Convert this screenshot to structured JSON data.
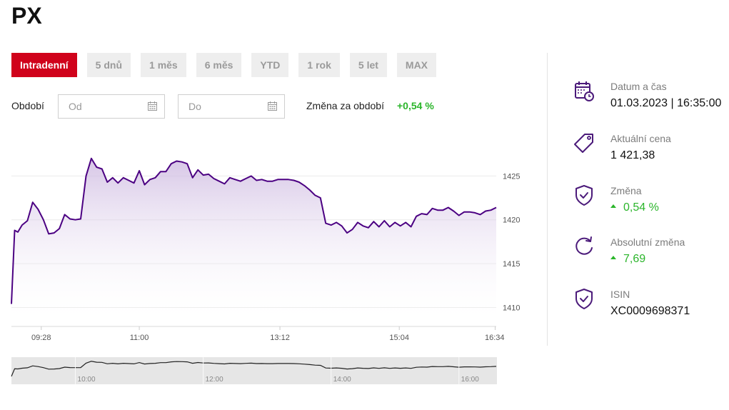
{
  "title": "PX",
  "tabs": [
    "Intradenní",
    "5 dnů",
    "1 měs",
    "6 měs",
    "YTD",
    "1 rok",
    "5 let",
    "MAX"
  ],
  "active_tab": 0,
  "period": {
    "label": "Období",
    "from_placeholder": "Od",
    "to_placeholder": "Do",
    "change_label": "Změna za období",
    "change_value": "+0,54 %"
  },
  "info": {
    "datetime_label": "Datum a čas",
    "datetime_value": "01.03.2023 | 16:35:00",
    "price_label": "Aktuální cena",
    "price_value": "1 421,38",
    "change_label": "Změna",
    "change_value": "0,54 %",
    "abs_change_label": "Absolutní změna",
    "abs_change_value": "7,69",
    "isin_label": "ISIN",
    "isin_value": "XC0009698371"
  },
  "colors": {
    "accent_red": "#d0021b",
    "line": "#4b0082",
    "positive": "#2bb52b",
    "icon": "#4b1a7a"
  },
  "chart_data": {
    "type": "area",
    "x_tick_labels": [
      "09:28",
      "11:00",
      "13:12",
      "15:04",
      "16:34"
    ],
    "y_tick_labels": [
      "1410",
      "1415",
      "1420",
      "1425"
    ],
    "ylim": [
      1408,
      1430
    ],
    "series": [
      {
        "x": [
          "09:00",
          "09:03",
          "09:06",
          "09:10",
          "09:15",
          "09:20",
          "09:25",
          "09:30",
          "09:35",
          "09:40",
          "09:45",
          "09:50",
          "09:55",
          "10:00",
          "10:05",
          "10:10",
          "10:15",
          "10:20",
          "10:25",
          "10:30",
          "10:35",
          "10:40",
          "10:45",
          "10:50",
          "10:55",
          "11:00",
          "11:05",
          "11:10",
          "11:15",
          "11:20",
          "11:25",
          "11:30",
          "11:35",
          "11:40",
          "11:45",
          "11:50",
          "11:55",
          "12:00",
          "12:05",
          "12:10",
          "12:15",
          "12:20",
          "12:25",
          "12:30",
          "12:35",
          "12:40",
          "12:45",
          "12:50",
          "12:55",
          "13:00",
          "13:05",
          "13:10",
          "13:15",
          "13:20",
          "13:25",
          "13:30",
          "13:35",
          "13:40",
          "13:45",
          "13:50",
          "13:55",
          "14:00",
          "14:05",
          "14:10",
          "14:15",
          "14:20",
          "14:25",
          "14:30",
          "14:35",
          "14:40",
          "14:45",
          "14:50",
          "14:55",
          "15:00",
          "15:05",
          "15:10",
          "15:15",
          "15:20",
          "15:25",
          "15:30",
          "15:35",
          "15:40",
          "15:45",
          "15:50",
          "15:55",
          "16:00",
          "16:05",
          "16:10",
          "16:15",
          "16:20",
          "16:25",
          "16:30",
          "16:35"
        ],
        "y": [
          1410.4,
          1418.8,
          1418.6,
          1419.4,
          1419.9,
          1422.0,
          1421.2,
          1420.0,
          1418.4,
          1418.5,
          1419.0,
          1420.6,
          1420.1,
          1420.0,
          1420.1,
          1425.0,
          1427.0,
          1426.0,
          1425.8,
          1424.3,
          1424.8,
          1424.2,
          1424.8,
          1424.5,
          1424.2,
          1425.6,
          1424.0,
          1424.6,
          1424.8,
          1425.5,
          1425.5,
          1426.4,
          1426.7,
          1426.6,
          1426.4,
          1424.8,
          1425.7,
          1425.1,
          1425.2,
          1424.7,
          1424.4,
          1424.1,
          1424.8,
          1424.6,
          1424.4,
          1424.7,
          1425.0,
          1424.5,
          1424.6,
          1424.4,
          1424.4,
          1424.6,
          1424.6,
          1424.6,
          1424.5,
          1424.3,
          1423.9,
          1423.4,
          1422.8,
          1422.5,
          1419.6,
          1419.4,
          1419.7,
          1419.3,
          1418.5,
          1418.9,
          1419.7,
          1419.3,
          1419.1,
          1419.8,
          1419.2,
          1419.9,
          1419.2,
          1419.7,
          1419.3,
          1419.7,
          1419.2,
          1420.4,
          1420.7,
          1420.6,
          1421.3,
          1421.1,
          1421.1,
          1421.4,
          1421.0,
          1420.5,
          1420.9,
          1420.9,
          1420.8,
          1420.6,
          1421.0,
          1421.1,
          1421.4
        ]
      }
    ],
    "navigator_tick_labels": [
      "10:00",
      "12:00",
      "14:00",
      "16:00"
    ]
  }
}
